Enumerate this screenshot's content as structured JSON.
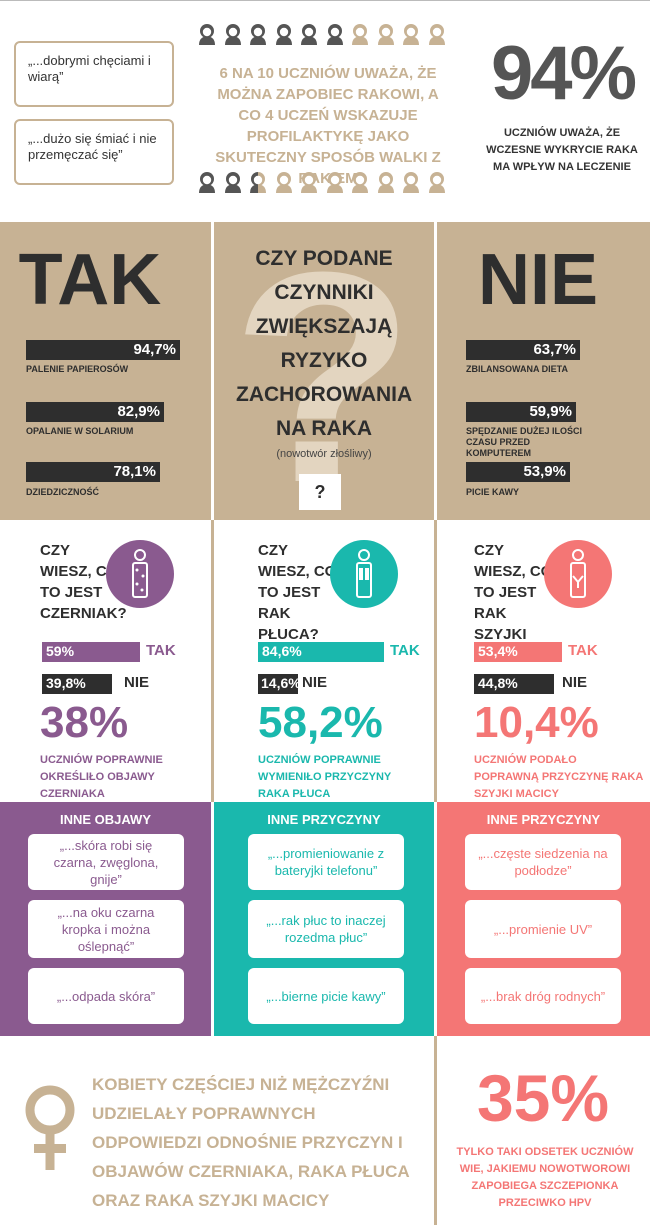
{
  "colors": {
    "gold": "#c7b294",
    "dark": "#3a3a3a",
    "purple": "#8a5a8f",
    "teal": "#1ab8ad",
    "coral": "#f47675"
  },
  "top": {
    "quote1": "„...dobrymi chęciami i wiarą”",
    "quote2": "„...dużo się śmiać i nie przemęczać się”",
    "middle_text": "6 NA 10 UCZNIÓW UWAŻA, ŻE MOŻNA ZAPOBIEC RAKOWI, A CO 4 UCZEŃ WSKAZUJE PROFILAKTYKĘ JAKO SKUTECZNY SPOSÓB WALKI Z RAKIEM",
    "people_row1_dark": 6,
    "people_row2_dark": 2.5,
    "big_pct": "94%",
    "big_caption": "UCZNIÓW UWAŻA, ŻE WCZESNE WYKRYCIE RAKA MA WPŁYW NA LECZENIE"
  },
  "risk": {
    "tak_title": "TAK",
    "nie_title": "NIE",
    "question": "CZY PODANE CZYNNIKI ZWIĘKSZAJĄ RYZYKO ZACHOROWANIA NA RAKA",
    "question_sub": "(nowotwór złośliwy)",
    "question_mark": "?",
    "tak_items": [
      {
        "value": "94,7%",
        "label": "PALENIE PAPIEROSÓW"
      },
      {
        "value": "82,9%",
        "label": "OPALANIE W SOLARIUM"
      },
      {
        "value": "78,1%",
        "label": "DZIEDZICZNOŚĆ"
      }
    ],
    "nie_items": [
      {
        "value": "63,7%",
        "label": "ZBILANSOWANA DIETA"
      },
      {
        "value": "59,9%",
        "label": "SPĘDZANIE DUŻEJ ILOŚCI CZASU PRZED KOMPUTEREM"
      },
      {
        "value": "53,9%",
        "label": "PICIE KAWY"
      }
    ]
  },
  "knowledge": [
    {
      "question": "CZY WIESZ, CO TO JEST CZERNIAK?",
      "yes_value": "59%",
      "yes_label": "TAK",
      "no_value": "39,8%",
      "no_label": "NIE",
      "pct": "38%",
      "caption": "UCZNIÓW POPRAWNIE OKREŚLIŁO OBJAWY CZERNIAKA",
      "icon": "skin-person-icon"
    },
    {
      "question": "CZY WIESZ, CO TO JEST RAK PŁUCA?",
      "yes_value": "84,6%",
      "yes_label": "TAK",
      "no_value": "14,6%",
      "no_label": "NIE",
      "pct": "58,2%",
      "caption": "UCZNIÓW POPRAWNIE WYMIENIŁO PRZYCZYNY RAKA PŁUCA",
      "icon": "lungs-person-icon"
    },
    {
      "question": "CZY WIESZ, CO TO JEST RAK SZYJKI MACICY?",
      "yes_value": "53,4%",
      "yes_label": "TAK",
      "no_value": "44,8%",
      "no_label": "NIE",
      "pct": "10,4%",
      "caption": "UCZNIÓW PODAŁO POPRAWNĄ PRZYCZYNĘ RAKA SZYJKI MACICY",
      "icon": "cervix-person-icon"
    }
  ],
  "other": [
    {
      "header": "INNE OBJAWY",
      "quotes": [
        "„...skóra robi się czarna, zwęglona, gnije”",
        "„...na oku czarna kropka i można oślepnąć”",
        "„...odpada skóra”"
      ]
    },
    {
      "header": "INNE PRZYCZYNY",
      "quotes": [
        "„...promieniowanie z bateryjki telefonu”",
        "„...rak płuc to inaczej rozedma płuc”",
        "„...bierne picie kawy”"
      ]
    },
    {
      "header": "INNE PRZYCZYNY",
      "quotes": [
        "„...częste siedzenia na podłodze”",
        "„...promienie UV”",
        "„...brak dróg rodnych”"
      ]
    }
  ],
  "bottom": {
    "women_text": "KOBIETY CZĘŚCIEJ NIŻ MĘŻCZYŹNI UDZIELAŁY POPRAWNYCH ODPOWIEDZI ODNOŚNIE PRZYCZYN I OBJAWÓW CZERNIAKA, RAKA PŁUCA ORAZ RAKA SZYJKI MACICY",
    "hpv_pct": "35%",
    "hpv_caption": "TYLKO TAKI ODSETEK UCZNIÓW WIE, JAKIEMU NOWOTWOROWI ZAPOBIEGA SZCZEPIONKA PRZECIWKO HPV"
  }
}
